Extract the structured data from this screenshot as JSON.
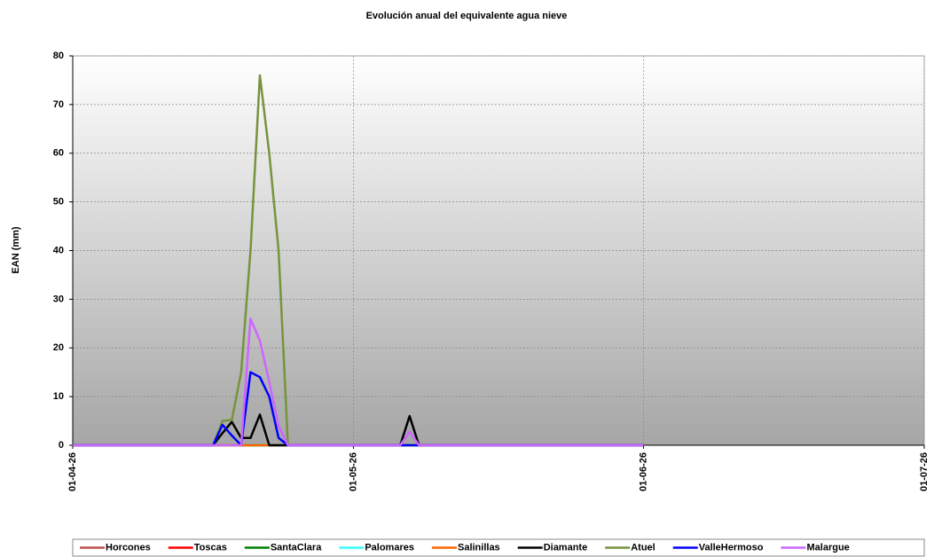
{
  "chart_data": {
    "type": "line",
    "title": "Evolución anual del equivalente agua nieve",
    "y_label": "EAN (mm)",
    "x": [
      "01-04-26",
      "16-04-26",
      "17-04-26",
      "18-04-26",
      "19-04-26",
      "20-04-26",
      "21-04-26",
      "22-04-26",
      "23-04-26",
      "24-04-26",
      "06-05-26",
      "07-05-26",
      "08-05-26",
      "01-06-26"
    ],
    "xlim": [
      "01-04-26",
      "01-07-26"
    ],
    "xticks": [
      "01-04-26",
      "01-05-26",
      "01-06-26",
      "01-07-26"
    ],
    "ylim": [
      0,
      80
    ],
    "yticks": [
      0,
      10,
      20,
      30,
      40,
      50,
      60,
      70,
      80
    ],
    "grid": true,
    "legend": "bottom",
    "series": [
      {
        "name": "Horcones",
        "color": "#c0504d",
        "values": [
          0,
          0,
          0,
          0,
          0,
          0,
          0,
          0,
          0,
          0,
          0,
          0,
          0,
          0
        ]
      },
      {
        "name": "Toscas",
        "color": "#ff0000",
        "values": [
          0,
          0,
          0,
          0,
          0,
          0,
          0,
          0,
          0,
          0,
          0,
          0,
          0,
          0
        ]
      },
      {
        "name": "SantaClara",
        "color": "#008000",
        "values": [
          0,
          0,
          0,
          0,
          0,
          0,
          0,
          0,
          0,
          0,
          0,
          0,
          0,
          0
        ]
      },
      {
        "name": "Palomares",
        "color": "#33ffff",
        "values": [
          0,
          0,
          0,
          0,
          0,
          0,
          0,
          0,
          0,
          0,
          0,
          0,
          0,
          0
        ]
      },
      {
        "name": "Salinillas",
        "color": "#ff6600",
        "values": [
          0,
          0,
          0,
          0,
          0,
          0,
          0,
          0,
          0,
          0,
          0,
          0,
          0,
          0
        ]
      },
      {
        "name": "Diamante",
        "color": "#000000",
        "values": [
          0,
          0,
          2.5,
          4.8,
          1.5,
          1.5,
          6.3,
          0,
          0,
          0,
          0,
          6,
          0,
          0
        ]
      },
      {
        "name": "Atuel",
        "color": "#77933c",
        "values": [
          0,
          0,
          5,
          5.2,
          15,
          40,
          76,
          60,
          40,
          0,
          0,
          0,
          0,
          0
        ]
      },
      {
        "name": "ValleHermoso",
        "color": "#0000ff",
        "values": [
          0,
          0,
          4.2,
          2,
          0,
          15,
          14,
          10,
          1.5,
          0,
          0,
          0,
          0,
          0
        ]
      },
      {
        "name": "Malargue",
        "color": "#cc66ff",
        "values": [
          0,
          0,
          0,
          0,
          0,
          26,
          21.5,
          13,
          4,
          0,
          0,
          2.8,
          0,
          0
        ]
      }
    ]
  }
}
